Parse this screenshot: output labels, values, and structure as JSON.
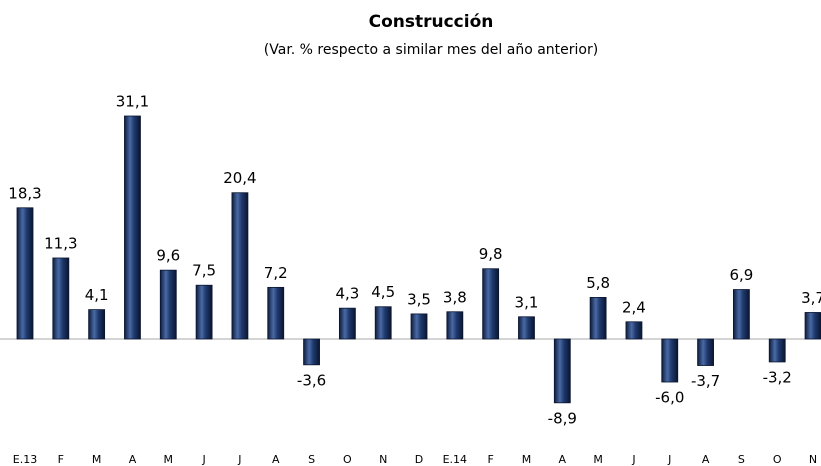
{
  "chart_data": {
    "type": "bar",
    "title": "Construcción",
    "subtitle": "(Var. % respecto a similar mes del año anterior)",
    "categories": [
      "E.13",
      "F",
      "M",
      "A",
      "M",
      "J",
      "J",
      "A",
      "S",
      "O",
      "N",
      "D",
      "E.14",
      "F",
      "M",
      "A",
      "M",
      "J",
      "J",
      "A",
      "S",
      "O",
      "N"
    ],
    "values": [
      18.3,
      11.3,
      4.1,
      31.1,
      9.6,
      7.5,
      20.4,
      7.2,
      -3.6,
      4.3,
      4.5,
      3.5,
      3.8,
      9.8,
      3.1,
      -8.9,
      5.8,
      2.4,
      -6.0,
      -3.7,
      6.9,
      -3.2,
      3.7
    ],
    "value_labels": [
      "18,3",
      "11,3",
      "4,1",
      "31,1",
      "9,6",
      "7,5",
      "20,4",
      "7,2",
      "-3,6",
      "4,3",
      "4,5",
      "3,5",
      "3,8",
      "9,8",
      "3,1",
      "-8,9",
      "5,8",
      "2,4",
      "-6,0",
      "-3,7",
      "6,9",
      "-3,2",
      "3,7"
    ],
    "color": "#1f3a6e"
  }
}
